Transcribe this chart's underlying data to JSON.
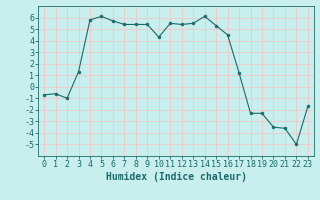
{
  "x": [
    0,
    1,
    2,
    3,
    4,
    5,
    6,
    7,
    8,
    9,
    10,
    11,
    12,
    13,
    14,
    15,
    16,
    17,
    18,
    19,
    20,
    21,
    22,
    23
  ],
  "y": [
    -0.7,
    -0.6,
    -1.0,
    1.3,
    5.8,
    6.1,
    5.7,
    5.4,
    5.4,
    5.4,
    4.3,
    5.5,
    5.4,
    5.5,
    6.1,
    5.3,
    4.5,
    1.2,
    -2.3,
    -2.3,
    -3.5,
    -3.6,
    -5.0,
    -1.7
  ],
  "line_color": "#1a6b6b",
  "marker_color": "#1a6b6b",
  "bg_color": "#c8eeee",
  "grid_color": "#f0c8c8",
  "axis_color": "#1a6b6b",
  "xlabel": "Humidex (Indice chaleur)",
  "xlim": [
    -0.5,
    23.5
  ],
  "ylim": [
    -6,
    7
  ],
  "yticks": [
    -5,
    -4,
    -3,
    -2,
    -1,
    0,
    1,
    2,
    3,
    4,
    5,
    6
  ],
  "xticks": [
    0,
    1,
    2,
    3,
    4,
    5,
    6,
    7,
    8,
    9,
    10,
    11,
    12,
    13,
    14,
    15,
    16,
    17,
    18,
    19,
    20,
    21,
    22,
    23
  ],
  "font_color": "#1a6b6b",
  "xlabel_fontsize": 7,
  "tick_fontsize": 6
}
